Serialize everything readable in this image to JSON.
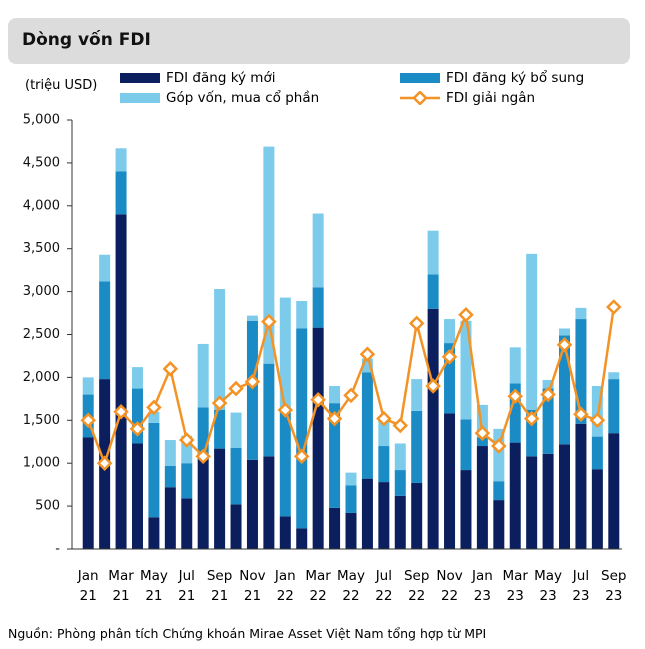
{
  "chart_data": {
    "type": "stacked_bar_line",
    "title": "Dòng vốn FDI",
    "y_label": "(triệu USD)",
    "source": "Nguồn: Phòng phân tích Chứng khoán Mirae Asset Việt Nam tổng hợp từ MPI",
    "categories": [
      "Jan 21",
      null,
      "Mar 21",
      null,
      "May 21",
      null,
      "Jul 21",
      null,
      "Sep 21",
      null,
      "Nov 21",
      null,
      "Jan 22",
      null,
      "Mar 22",
      null,
      "May 22",
      null,
      "Jul 22",
      null,
      "Sep 22",
      null,
      "Nov 22",
      null,
      "Jan 23",
      null,
      "Mar 23",
      null,
      "May 23",
      null,
      "Jul 23",
      null,
      "Sep 23"
    ],
    "series": [
      {
        "name": "FDI đăng ký mới",
        "type": "bar",
        "color": "#0b1f5e",
        "values": [
          1300,
          1980,
          3900,
          1230,
          370,
          720,
          590,
          1050,
          1170,
          520,
          1040,
          1080,
          380,
          240,
          2580,
          480,
          420,
          820,
          780,
          620,
          770,
          2800,
          1580,
          920,
          1200,
          570,
          1240,
          1080,
          1110,
          1220,
          1460,
          930,
          1350
        ]
      },
      {
        "name": "FDI đăng ký bổ sung",
        "type": "bar",
        "color": "#1a8bc4",
        "values": [
          500,
          1140,
          500,
          640,
          1100,
          250,
          410,
          600,
          450,
          660,
          1620,
          1080,
          1240,
          2330,
          470,
          1220,
          320,
          1240,
          420,
          300,
          840,
          400,
          820,
          590,
          100,
          220,
          690,
          540,
          760,
          1270,
          1220,
          380,
          630
        ]
      },
      {
        "name": "Góp vốn, mua cổ phần",
        "type": "bar",
        "color": "#7ccbea",
        "values": [
          200,
          310,
          270,
          250,
          130,
          300,
          320,
          740,
          1410,
          410,
          60,
          2530,
          1310,
          320,
          860,
          200,
          150,
          160,
          320,
          310,
          370,
          510,
          280,
          1150,
          380,
          610,
          420,
          1820,
          100,
          80,
          130,
          590,
          80
        ]
      },
      {
        "name": "FDI giải ngân",
        "type": "line",
        "color": "#f39325",
        "values": [
          1500,
          1000,
          1600,
          1400,
          1650,
          2100,
          1270,
          1080,
          1700,
          1870,
          1950,
          2650,
          1620,
          1080,
          1740,
          1520,
          1790,
          2270,
          1520,
          1440,
          2630,
          1900,
          2240,
          2730,
          1350,
          1200,
          1780,
          1520,
          1800,
          2380,
          1570,
          1500,
          2820
        ]
      }
    ],
    "ylim": [
      0,
      5000
    ],
    "yticks": [
      {
        "value": 0,
        "label": "-"
      },
      500,
      {
        "value": 1000,
        "label": "1,000"
      },
      {
        "value": 1500,
        "label": "1,500"
      },
      {
        "value": 2000,
        "label": "2,000"
      },
      {
        "value": 2500,
        "label": "2,500"
      },
      {
        "value": 3000,
        "label": "3,000"
      },
      {
        "value": 3500,
        "label": "3,500"
      },
      {
        "value": 4000,
        "label": "4,000"
      },
      {
        "value": 4500,
        "label": "4,500"
      },
      {
        "value": 5000,
        "label": "5,000"
      }
    ]
  }
}
